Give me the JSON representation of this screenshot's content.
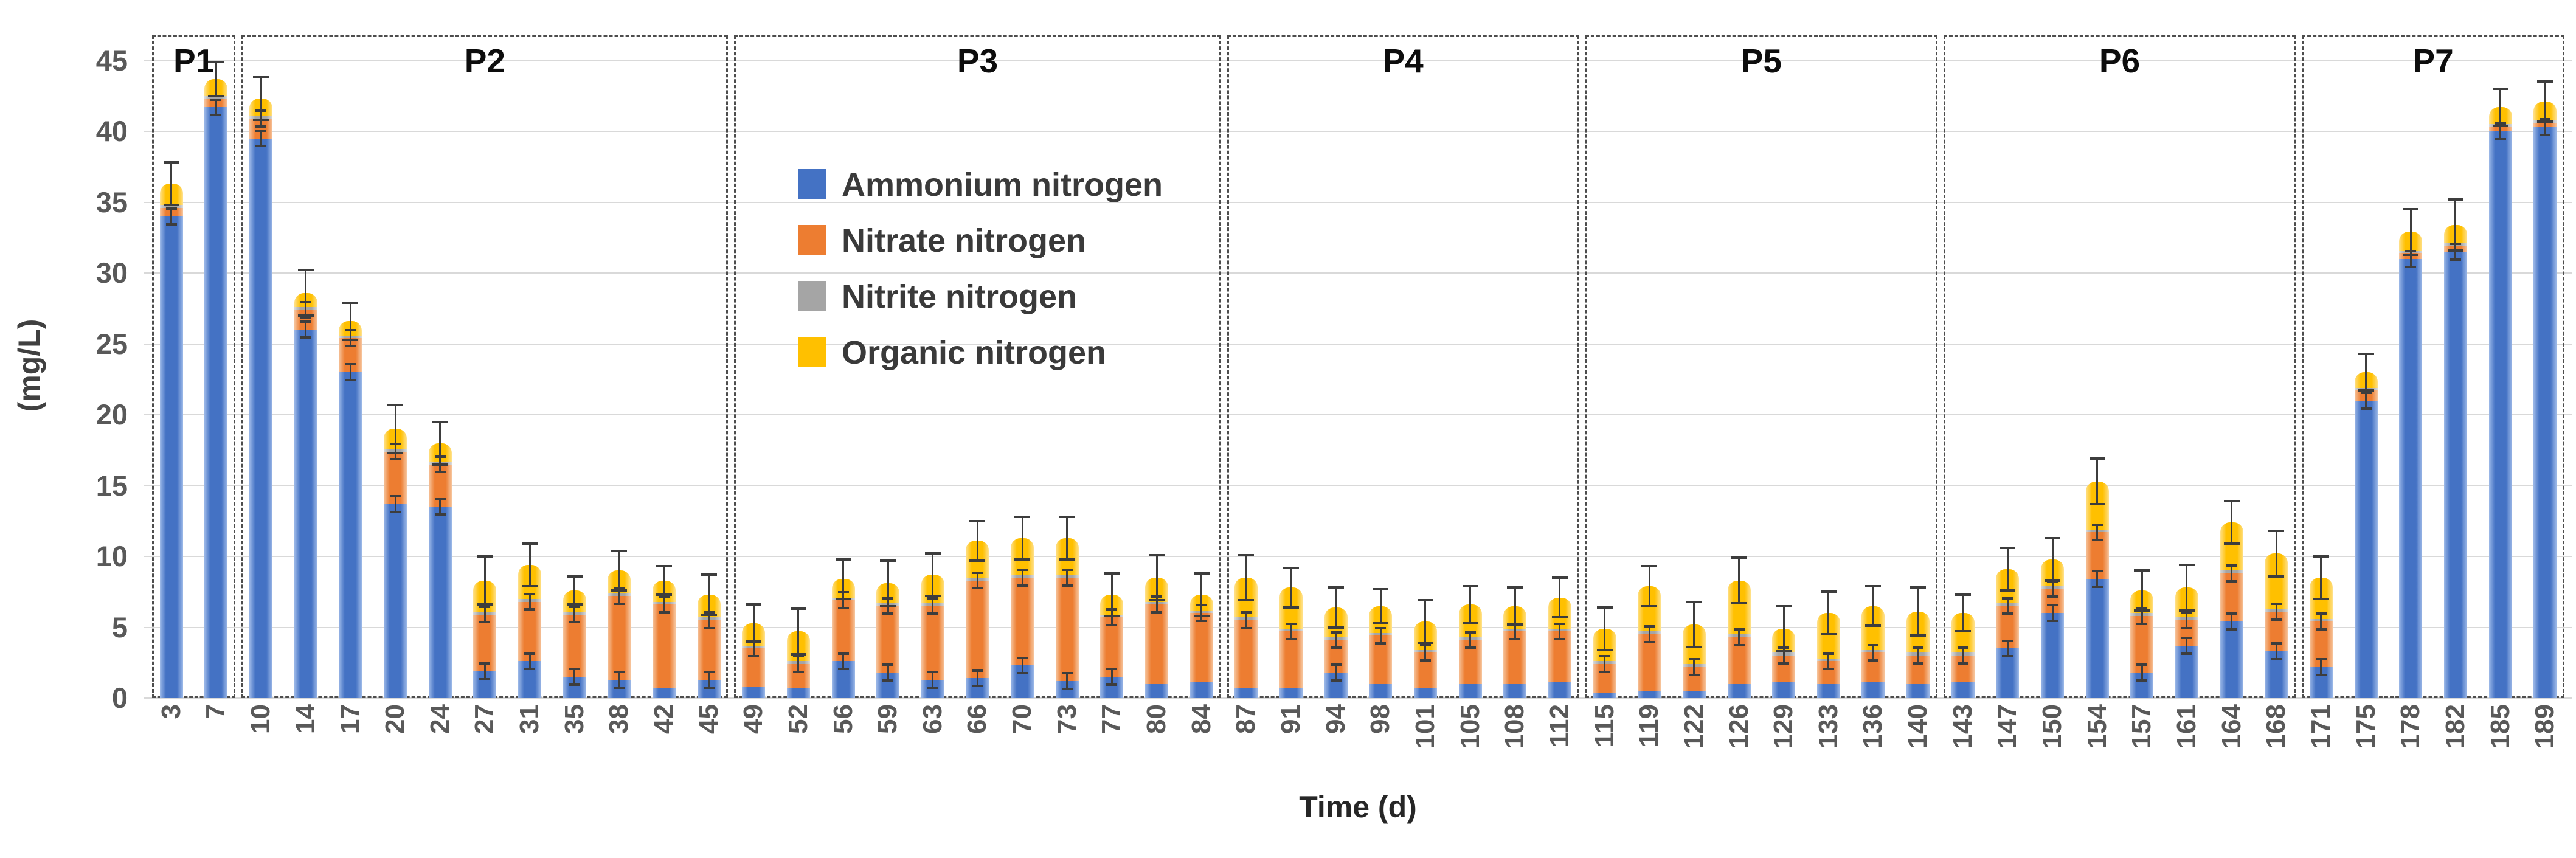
{
  "figure_title": "",
  "axes": {
    "y_title": "(mg/L)",
    "x_title": "Time (d)",
    "y_ticks": [
      0,
      5,
      10,
      15,
      20,
      25,
      30,
      35,
      40,
      45
    ]
  },
  "colors": {
    "ammonium": "#4472C4",
    "nitrate": "#ED7D31",
    "nitrite": "#A5A5A5",
    "organic": "#FFC000",
    "gridline": "#D9D9D9",
    "error_bar": "#3D3D3D",
    "period_box": "#4D4D4D"
  },
  "chart_data": {
    "type": "bar",
    "stacked": true,
    "title": "",
    "xlabel": "Time (d)",
    "ylabel": "(mg/L)",
    "ylim": [
      0,
      45
    ],
    "yticks": [
      0,
      5,
      10,
      15,
      20,
      25,
      30,
      35,
      40,
      45
    ],
    "grid": true,
    "legend_position": "inside top-left of P3 region",
    "categories": [
      3,
      7,
      10,
      14,
      17,
      20,
      24,
      27,
      31,
      35,
      38,
      42,
      45,
      49,
      52,
      56,
      59,
      63,
      66,
      70,
      73,
      77,
      80,
      84,
      87,
      91,
      94,
      98,
      101,
      105,
      108,
      112,
      115,
      119,
      122,
      126,
      129,
      133,
      136,
      140,
      143,
      147,
      150,
      154,
      157,
      161,
      164,
      168,
      171,
      175,
      178,
      182,
      185,
      189
    ],
    "series": [
      {
        "name": "Ammonium nitrogen",
        "color": "#4472C4",
        "values": [
          34.0,
          41.7,
          39.5,
          26.0,
          23.0,
          13.7,
          13.5,
          1.9,
          2.6,
          1.5,
          1.3,
          0.7,
          1.3,
          0.8,
          0.7,
          2.6,
          1.8,
          1.3,
          1.4,
          2.3,
          1.2,
          1.5,
          1.0,
          1.1,
          0.7,
          0.7,
          1.8,
          1.0,
          0.7,
          1.0,
          1.0,
          1.1,
          0.4,
          0.5,
          0.5,
          1.0,
          1.1,
          1.0,
          1.1,
          1.0,
          1.1,
          3.5,
          6.0,
          8.4,
          1.8,
          3.7,
          5.4,
          3.3,
          2.2,
          21.0,
          31.0,
          31.5,
          40.0,
          40.3
        ]
      },
      {
        "name": "Nitrate nitrogen",
        "color": "#ED7D31",
        "values": [
          0.6,
          0.6,
          1.4,
          1.4,
          2.4,
          3.7,
          3.0,
          4.0,
          4.2,
          4.4,
          5.9,
          5.9,
          4.2,
          2.7,
          1.7,
          4.3,
          4.7,
          5.2,
          6.9,
          6.2,
          7.3,
          4.2,
          5.6,
          4.9,
          4.8,
          4.0,
          2.3,
          3.4,
          2.5,
          3.1,
          3.7,
          3.6,
          2.0,
          4.0,
          1.7,
          3.3,
          1.9,
          1.6,
          2.1,
          2.0,
          1.9,
          3.0,
          1.7,
          3.3,
          4.0,
          1.8,
          3.4,
          2.8,
          3.2,
          0.7,
          0.4,
          0.4,
          0.3,
          0.3
        ]
      },
      {
        "name": "Nitrite nitrogen",
        "color": "#A5A5A5",
        "values": [
          0.2,
          0.2,
          0.2,
          0.2,
          0.2,
          0.2,
          0.2,
          0.2,
          0.2,
          0.2,
          0.2,
          0.2,
          0.2,
          0.2,
          0.2,
          0.2,
          0.2,
          0.2,
          0.2,
          0.2,
          0.2,
          0.2,
          0.2,
          0.2,
          0.2,
          0.2,
          0.2,
          0.2,
          0.2,
          0.2,
          0.2,
          0.2,
          0.2,
          0.2,
          0.2,
          0.2,
          0.2,
          0.2,
          0.2,
          0.2,
          0.2,
          0.2,
          0.2,
          0.2,
          0.2,
          0.2,
          0.2,
          0.2,
          0.2,
          0.2,
          0.2,
          0.2,
          0.2,
          0.2
        ]
      },
      {
        "name": "Organic nitrogen",
        "color": "#FFC000",
        "values": [
          1.5,
          1.2,
          1.2,
          1.0,
          1.0,
          1.4,
          1.3,
          2.2,
          2.4,
          1.5,
          1.6,
          1.5,
          1.6,
          1.6,
          2.1,
          1.3,
          1.4,
          2.0,
          2.6,
          2.6,
          2.6,
          1.4,
          1.7,
          1.1,
          2.8,
          2.9,
          2.1,
          1.9,
          2.0,
          2.3,
          1.6,
          2.2,
          2.3,
          3.2,
          2.8,
          3.8,
          1.7,
          3.2,
          3.1,
          2.9,
          2.8,
          2.4,
          1.9,
          3.4,
          1.6,
          2.1,
          3.4,
          3.9,
          2.9,
          1.1,
          1.3,
          1.3,
          1.2,
          1.3
        ]
      }
    ],
    "error_total": [
      1.5,
      1.2,
      1.5,
      1.6,
      1.3,
      1.7,
      1.5,
      1.7,
      1.5,
      1.0,
      1.4,
      1.0,
      1.4,
      1.3,
      1.6,
      1.4,
      1.6,
      1.5,
      1.4,
      1.5,
      1.5,
      1.5,
      1.6,
      1.5,
      1.6,
      1.4,
      1.4,
      1.2,
      1.5,
      1.3,
      1.3,
      1.4,
      1.5,
      1.4,
      1.6,
      1.6,
      1.6,
      1.5,
      1.4,
      1.7,
      1.3,
      1.5,
      1.5,
      1.6,
      1.4,
      1.6,
      1.5,
      1.6,
      1.5,
      1.3,
      1.6,
      1.8,
      1.3,
      1.4
    ],
    "periods": [
      {
        "label": "P1",
        "start_day": 3,
        "end_day": 7
      },
      {
        "label": "P2",
        "start_day": 10,
        "end_day": 45
      },
      {
        "label": "P3",
        "start_day": 49,
        "end_day": 84
      },
      {
        "label": "P4",
        "start_day": 87,
        "end_day": 112
      },
      {
        "label": "P5",
        "start_day": 115,
        "end_day": 140
      },
      {
        "label": "P6",
        "start_day": 143,
        "end_day": 168
      },
      {
        "label": "P7",
        "start_day": 171,
        "end_day": 189
      }
    ]
  },
  "legend": {
    "items": [
      {
        "label": "Ammonium nitrogen",
        "color": "#4472C4"
      },
      {
        "label": "Nitrate nitrogen",
        "color": "#ED7D31"
      },
      {
        "label": "Nitrite nitrogen",
        "color": "#A5A5A5"
      },
      {
        "label": "Organic nitrogen",
        "color": "#FFC000"
      }
    ]
  }
}
